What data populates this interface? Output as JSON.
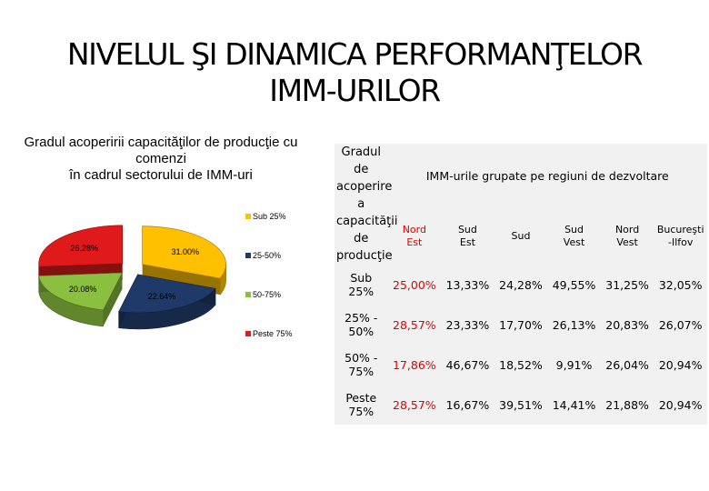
{
  "slide": {
    "title_line1": "NIVELUL ŞI DINAMICA PERFORMANŢELOR",
    "title_line2": "IMM-URILOR"
  },
  "chart_data": {
    "type": "pie",
    "title_lines": [
      "Gradul acoperirii capacităţilor de producţie cu",
      "comenzi",
      "în cadrul sectorului de IMM-uri"
    ],
    "legend_position": "right",
    "slices": [
      {
        "label": "Sub 25%",
        "value": 31.0,
        "value_text": "31.00%",
        "color": "#ffc000"
      },
      {
        "label": "25-50%",
        "value": 22.64,
        "value_text": "22.64%",
        "color": "#1f3a68"
      },
      {
        "label": "50-75%",
        "value": 20.08,
        "value_text": "20.08%",
        "color": "#8bbf3f"
      },
      {
        "label": "Peste 75%",
        "value": 26.28,
        "value_text": "26.28%",
        "color": "#e01a1a"
      }
    ]
  },
  "table": {
    "corner_header": [
      "Gradul de",
      "acoperire a",
      "capacităţii de",
      "producţie"
    ],
    "group_header": "IMM-urile grupate pe regiuni de dezvoltare",
    "regions": [
      [
        "Nord",
        "Est"
      ],
      [
        "Sud",
        "Est"
      ],
      [
        "Sud"
      ],
      [
        "Sud",
        "Vest"
      ],
      [
        "Nord",
        "Vest"
      ],
      [
        "Bucureşti",
        "-Ilfov"
      ]
    ],
    "rows": [
      {
        "label": "Sub 25%",
        "values": [
          "25,00%",
          "13,33%",
          "24,28%",
          "49,55%",
          "31,25%",
          "32,05%"
        ]
      },
      {
        "label": "25% - 50%",
        "values": [
          "28,57%",
          "23,33%",
          "17,70%",
          "26,13%",
          "20,83%",
          "26,07%"
        ]
      },
      {
        "label": "50% - 75%",
        "values": [
          "17,86%",
          "46,67%",
          "18,52%",
          "9,91%",
          "26,04%",
          "20,94%"
        ]
      },
      {
        "label": "Peste 75%",
        "values": [
          "28,57%",
          "16,67%",
          "39,51%",
          "14,41%",
          "21,88%",
          "20,94%"
        ]
      }
    ]
  }
}
